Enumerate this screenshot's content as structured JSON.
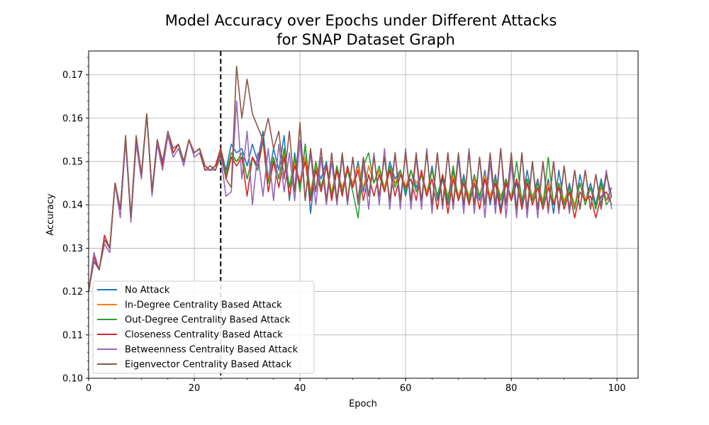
{
  "chart_data": {
    "type": "line",
    "title_lines": [
      "Model Accuracy over Epochs under Different Attacks",
      "for SNAP Dataset Graph"
    ],
    "xlabel": "Epoch",
    "ylabel": "Accuracy",
    "xlim": [
      0,
      104
    ],
    "ylim": [
      0.1,
      0.1755
    ],
    "xticks": [
      0,
      20,
      40,
      60,
      80,
      100
    ],
    "xtick_labels": [
      "0",
      "20",
      "40",
      "60",
      "80",
      "100"
    ],
    "yticks": [
      0.1,
      0.11,
      0.12,
      0.13,
      0.14,
      0.15,
      0.16,
      0.17
    ],
    "ytick_labels": [
      "0.10",
      "0.11",
      "0.12",
      "0.13",
      "0.14",
      "0.15",
      "0.16",
      "0.17"
    ],
    "grid": true,
    "legend_position": "lower-left",
    "vline": {
      "x": 25,
      "style": "dashed",
      "color": "#000000"
    },
    "series": [
      {
        "name": "No Attack",
        "color": "#1f77b4",
        "values": [
          0.12,
          0.128,
          0.125,
          0.132,
          0.13,
          0.145,
          0.139,
          0.155,
          0.137,
          0.155,
          0.147,
          0.161,
          0.143,
          0.155,
          0.149,
          0.156,
          0.152,
          0.154,
          0.15,
          0.155,
          0.152,
          0.153,
          0.149,
          0.148,
          0.149,
          0.153,
          0.148,
          0.154,
          0.152,
          0.153,
          0.149,
          0.154,
          0.15,
          0.157,
          0.146,
          0.153,
          0.148,
          0.156,
          0.141,
          0.152,
          0.144,
          0.154,
          0.138,
          0.149,
          0.146,
          0.15,
          0.142,
          0.149,
          0.143,
          0.148,
          0.144,
          0.15,
          0.143,
          0.149,
          0.145,
          0.148,
          0.143,
          0.15,
          0.146,
          0.148,
          0.142,
          0.148,
          0.144,
          0.147,
          0.142,
          0.149,
          0.141,
          0.146,
          0.14,
          0.148,
          0.141,
          0.147,
          0.14,
          0.145,
          0.141,
          0.148,
          0.14,
          0.147,
          0.139,
          0.146,
          0.141,
          0.145,
          0.14,
          0.148,
          0.141,
          0.146,
          0.14,
          0.146,
          0.138,
          0.148,
          0.14,
          0.145,
          0.139,
          0.147,
          0.141,
          0.145,
          0.14,
          0.146,
          0.141,
          0.144
        ]
      },
      {
        "name": "In-Degree Centrality Based Attack",
        "color": "#ff7f0e",
        "values": [
          0.12,
          0.127,
          0.125,
          0.132,
          0.13,
          0.145,
          0.139,
          0.155,
          0.137,
          0.155,
          0.147,
          0.161,
          0.143,
          0.155,
          0.149,
          0.156,
          0.152,
          0.154,
          0.15,
          0.155,
          0.152,
          0.153,
          0.149,
          0.148,
          0.149,
          0.153,
          0.146,
          0.151,
          0.15,
          0.151,
          0.146,
          0.151,
          0.148,
          0.155,
          0.146,
          0.151,
          0.146,
          0.152,
          0.144,
          0.15,
          0.145,
          0.151,
          0.143,
          0.149,
          0.144,
          0.149,
          0.143,
          0.148,
          0.144,
          0.148,
          0.145,
          0.149,
          0.144,
          0.149,
          0.145,
          0.148,
          0.144,
          0.149,
          0.145,
          0.148,
          0.144,
          0.148,
          0.145,
          0.147,
          0.143,
          0.148,
          0.142,
          0.147,
          0.142,
          0.147,
          0.142,
          0.146,
          0.142,
          0.146,
          0.142,
          0.147,
          0.142,
          0.146,
          0.142,
          0.145,
          0.142,
          0.146,
          0.141,
          0.146,
          0.142,
          0.145,
          0.141,
          0.145,
          0.14,
          0.145,
          0.141,
          0.144,
          0.14,
          0.145,
          0.141,
          0.144,
          0.139,
          0.144,
          0.141,
          0.142
        ]
      },
      {
        "name": "Out-Degree Centrality Based Attack",
        "color": "#2ca02c",
        "values": [
          0.12,
          0.127,
          0.125,
          0.132,
          0.13,
          0.145,
          0.139,
          0.155,
          0.137,
          0.155,
          0.147,
          0.161,
          0.143,
          0.155,
          0.149,
          0.156,
          0.152,
          0.154,
          0.15,
          0.155,
          0.152,
          0.153,
          0.149,
          0.148,
          0.149,
          0.153,
          0.147,
          0.152,
          0.15,
          0.152,
          0.146,
          0.151,
          0.148,
          0.155,
          0.145,
          0.151,
          0.146,
          0.153,
          0.144,
          0.151,
          0.143,
          0.154,
          0.142,
          0.15,
          0.144,
          0.149,
          0.142,
          0.149,
          0.143,
          0.148,
          0.143,
          0.137,
          0.149,
          0.152,
          0.145,
          0.149,
          0.143,
          0.149,
          0.144,
          0.148,
          0.143,
          0.148,
          0.143,
          0.147,
          0.142,
          0.148,
          0.142,
          0.147,
          0.141,
          0.149,
          0.141,
          0.146,
          0.141,
          0.147,
          0.142,
          0.146,
          0.141,
          0.146,
          0.141,
          0.146,
          0.141,
          0.15,
          0.141,
          0.146,
          0.141,
          0.145,
          0.14,
          0.151,
          0.14,
          0.145,
          0.14,
          0.144,
          0.139,
          0.145,
          0.14,
          0.144,
          0.139,
          0.145,
          0.14,
          0.142
        ]
      },
      {
        "name": "Closeness Centrality Based Attack",
        "color": "#d62728",
        "values": [
          0.12,
          0.128,
          0.125,
          0.133,
          0.13,
          0.145,
          0.139,
          0.155,
          0.137,
          0.155,
          0.147,
          0.161,
          0.143,
          0.155,
          0.149,
          0.156,
          0.152,
          0.154,
          0.15,
          0.155,
          0.152,
          0.153,
          0.149,
          0.148,
          0.149,
          0.153,
          0.146,
          0.151,
          0.149,
          0.151,
          0.142,
          0.151,
          0.149,
          0.155,
          0.143,
          0.15,
          0.144,
          0.151,
          0.142,
          0.149,
          0.145,
          0.15,
          0.141,
          0.148,
          0.143,
          0.149,
          0.141,
          0.148,
          0.142,
          0.149,
          0.144,
          0.148,
          0.141,
          0.147,
          0.142,
          0.147,
          0.143,
          0.148,
          0.142,
          0.147,
          0.144,
          0.146,
          0.141,
          0.148,
          0.142,
          0.146,
          0.139,
          0.147,
          0.138,
          0.146,
          0.141,
          0.145,
          0.14,
          0.145,
          0.139,
          0.146,
          0.141,
          0.145,
          0.138,
          0.145,
          0.141,
          0.146,
          0.139,
          0.145,
          0.14,
          0.144,
          0.139,
          0.144,
          0.14,
          0.144,
          0.139,
          0.143,
          0.137,
          0.143,
          0.141,
          0.142,
          0.137,
          0.142,
          0.143,
          0.14
        ]
      },
      {
        "name": "Betweenness Centrality Based Attack",
        "color": "#9467bd",
        "values": [
          0.12,
          0.129,
          0.125,
          0.131,
          0.129,
          0.145,
          0.137,
          0.155,
          0.136,
          0.154,
          0.146,
          0.161,
          0.142,
          0.154,
          0.148,
          0.156,
          0.151,
          0.153,
          0.149,
          0.155,
          0.151,
          0.152,
          0.148,
          0.148,
          0.148,
          0.151,
          0.142,
          0.143,
          0.164,
          0.146,
          0.157,
          0.14,
          0.152,
          0.142,
          0.153,
          0.141,
          0.154,
          0.143,
          0.152,
          0.141,
          0.155,
          0.141,
          0.152,
          0.14,
          0.151,
          0.14,
          0.15,
          0.14,
          0.151,
          0.14,
          0.151,
          0.14,
          0.15,
          0.139,
          0.152,
          0.14,
          0.153,
          0.139,
          0.152,
          0.139,
          0.153,
          0.139,
          0.151,
          0.139,
          0.153,
          0.138,
          0.152,
          0.139,
          0.152,
          0.139,
          0.151,
          0.138,
          0.153,
          0.138,
          0.151,
          0.137,
          0.15,
          0.138,
          0.153,
          0.137,
          0.15,
          0.137,
          0.152,
          0.137,
          0.15,
          0.137,
          0.15,
          0.138,
          0.15,
          0.138,
          0.149,
          0.138,
          0.148,
          0.139,
          0.148,
          0.139,
          0.147,
          0.14,
          0.148,
          0.139
        ]
      },
      {
        "name": "Eigenvector Centrality Based Attack",
        "color": "#8c564b",
        "values": [
          0.12,
          0.127,
          0.125,
          0.132,
          0.13,
          0.145,
          0.139,
          0.156,
          0.137,
          0.156,
          0.147,
          0.161,
          0.143,
          0.155,
          0.15,
          0.157,
          0.153,
          0.154,
          0.15,
          0.155,
          0.152,
          0.153,
          0.148,
          0.149,
          0.148,
          0.152,
          0.146,
          0.144,
          0.172,
          0.16,
          0.169,
          0.161,
          0.158,
          0.155,
          0.16,
          0.153,
          0.157,
          0.146,
          0.157,
          0.143,
          0.159,
          0.141,
          0.153,
          0.143,
          0.153,
          0.141,
          0.152,
          0.141,
          0.152,
          0.141,
          0.151,
          0.141,
          0.151,
          0.142,
          0.151,
          0.142,
          0.151,
          0.141,
          0.152,
          0.141,
          0.152,
          0.141,
          0.152,
          0.141,
          0.152,
          0.14,
          0.152,
          0.14,
          0.152,
          0.14,
          0.152,
          0.14,
          0.152,
          0.14,
          0.151,
          0.14,
          0.152,
          0.14,
          0.153,
          0.14,
          0.152,
          0.139,
          0.152,
          0.139,
          0.15,
          0.139,
          0.15,
          0.139,
          0.15,
          0.139,
          0.149,
          0.139,
          0.148,
          0.139,
          0.148,
          0.139,
          0.147,
          0.139,
          0.147,
          0.142
        ]
      }
    ]
  }
}
